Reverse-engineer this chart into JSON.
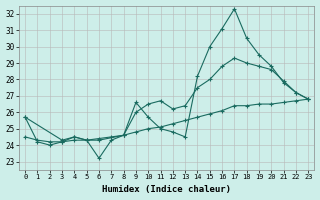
{
  "xlabel": "Humidex (Indice chaleur)",
  "background_color": "#cdeee9",
  "grid_color": "#b8b8b8",
  "line_color": "#1a6b60",
  "xlim": [
    -0.5,
    23.5
  ],
  "ylim": [
    22.5,
    32.5
  ],
  "yticks": [
    23,
    24,
    25,
    26,
    27,
    28,
    29,
    30,
    31,
    32
  ],
  "xticks": [
    0,
    1,
    2,
    3,
    4,
    5,
    6,
    7,
    8,
    9,
    10,
    11,
    12,
    13,
    14,
    15,
    16,
    17,
    18,
    19,
    20,
    21,
    22,
    23
  ],
  "line1_x": [
    0,
    1,
    2,
    3,
    4,
    5,
    6,
    7,
    8,
    9,
    10,
    11,
    12,
    13,
    14,
    15,
    16,
    17,
    18,
    19,
    20,
    21,
    22,
    23
  ],
  "line1_y": [
    25.7,
    24.2,
    24.0,
    24.2,
    24.5,
    24.3,
    23.2,
    24.3,
    24.6,
    26.6,
    25.7,
    25.0,
    24.8,
    24.5,
    28.2,
    30.0,
    31.1,
    32.3,
    30.5,
    29.5,
    28.8,
    27.8,
    27.2,
    26.8
  ],
  "line2_x": [
    0,
    3,
    4,
    5,
    6,
    8,
    9,
    10,
    11,
    12,
    13,
    14,
    15,
    16,
    17,
    18,
    19,
    20,
    21,
    22,
    23
  ],
  "line2_y": [
    25.7,
    24.3,
    24.5,
    24.3,
    24.3,
    24.6,
    26.0,
    26.5,
    26.7,
    26.2,
    26.4,
    27.5,
    28.0,
    28.8,
    29.3,
    29.0,
    28.8,
    28.6,
    27.9,
    27.2,
    26.8
  ],
  "line3_x": [
    0,
    1,
    2,
    3,
    4,
    5,
    6,
    7,
    8,
    9,
    10,
    11,
    12,
    13,
    14,
    15,
    16,
    17,
    18,
    19,
    20,
    21,
    22,
    23
  ],
  "line3_y": [
    24.5,
    24.3,
    24.2,
    24.2,
    24.3,
    24.3,
    24.4,
    24.5,
    24.6,
    24.8,
    25.0,
    25.1,
    25.3,
    25.5,
    25.7,
    25.9,
    26.1,
    26.4,
    26.4,
    26.5,
    26.5,
    26.6,
    26.7,
    26.8
  ]
}
